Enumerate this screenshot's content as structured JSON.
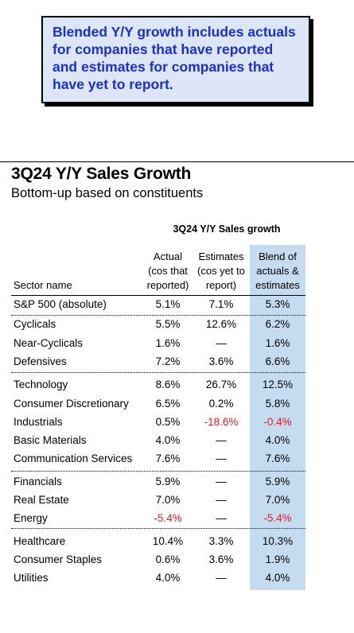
{
  "note": {
    "text": "Blended Y/Y growth includes actuals for companies that have reported and estimates for companies that have yet to report."
  },
  "table": {
    "title": "3Q24 Y/Y Sales Growth",
    "subtitle": "Bottom-up based on constituents",
    "group_header": "3Q24 Y/Y Sales growth",
    "columns": [
      {
        "lines": [
          "Actual",
          "(cos that",
          "reported)"
        ]
      },
      {
        "lines": [
          "Estimates",
          "(cos yet to",
          "report)"
        ]
      },
      {
        "lines": [
          "Blend of",
          "actuals &",
          "estimates"
        ]
      }
    ],
    "sector_label": "Sector name",
    "highlight_color": "#c5dbf0",
    "negative_color": "#e8202a",
    "rows": [
      {
        "name": "S&P 500 (absolute)",
        "actual": "5.1%",
        "estimate": "7.1%",
        "blend": "5.3%"
      },
      {
        "name": "Cyclicals",
        "actual": "5.5%",
        "estimate": "12.6%",
        "blend": "6.2%"
      },
      {
        "name": "Near-Cyclicals",
        "actual": "1.6%",
        "estimate": "—",
        "blend": "1.6%"
      },
      {
        "name": "Defensives",
        "actual": "7.2%",
        "estimate": "3.6%",
        "blend": "6.6%"
      },
      {
        "name": "Technology",
        "actual": "8.6%",
        "estimate": "26.7%",
        "blend": "12.5%"
      },
      {
        "name": "Consumer Discretionary",
        "actual": "6.5%",
        "estimate": "0.2%",
        "blend": "5.8%"
      },
      {
        "name": "Industrials",
        "actual": "0.5%",
        "estimate": "-18.6%",
        "blend": "-0.4%"
      },
      {
        "name": "Basic Materials",
        "actual": "4.0%",
        "estimate": "—",
        "blend": "4.0%"
      },
      {
        "name": "Communication Services",
        "actual": "7.6%",
        "estimate": "—",
        "blend": "7.6%"
      },
      {
        "name": "Financials",
        "actual": "5.9%",
        "estimate": "—",
        "blend": "5.9%"
      },
      {
        "name": "Real Estate",
        "actual": "7.0%",
        "estimate": "—",
        "blend": "7.0%"
      },
      {
        "name": "Energy",
        "actual": "-5.4%",
        "estimate": "—",
        "blend": "-5.4%"
      },
      {
        "name": "Healthcare",
        "actual": "10.4%",
        "estimate": "3.3%",
        "blend": "10.3%"
      },
      {
        "name": "Consumer Staples",
        "actual": "0.6%",
        "estimate": "3.6%",
        "blend": "1.9%"
      },
      {
        "name": "Utilities",
        "actual": "4.0%",
        "estimate": "—",
        "blend": "4.0%"
      }
    ]
  }
}
